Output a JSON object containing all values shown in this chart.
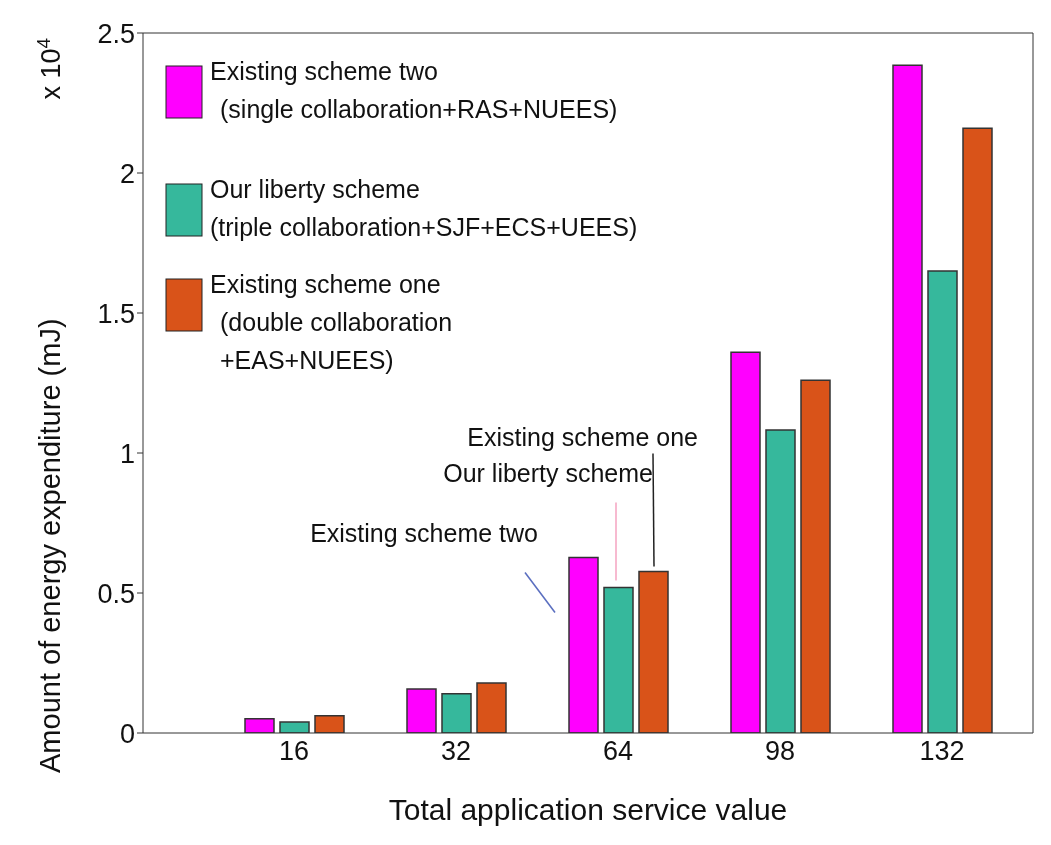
{
  "chart_data": {
    "type": "bar",
    "xlabel": "Total application service value",
    "ylabel": "Amount of energy expenditure (mJ)",
    "categories": [
      "16",
      "32",
      "64",
      "98",
      "132"
    ],
    "series": [
      {
        "name": "Existing scheme two\n(single collaboration+RAS+NUEES)",
        "color": "#ff00ff",
        "values": [
          0.051,
          0.157,
          0.627,
          1.36,
          2.385
        ]
      },
      {
        "name": "Our liberty scheme\n(triple collaboration+SJF+ECS+UEES)",
        "color": "#36b89c",
        "values": [
          0.039,
          0.14,
          0.52,
          1.082,
          1.65
        ]
      },
      {
        "name": "Existing scheme one\n(double collaboration\n+EAS+NUEES)",
        "color": "#d95319",
        "values": [
          0.062,
          0.179,
          0.577,
          1.26,
          2.16
        ]
      }
    ],
    "ylim": [
      0,
      2.5
    ],
    "yticks": [
      0,
      0.5,
      1,
      1.5,
      2,
      2.5
    ],
    "legend": "top left",
    "grid": false,
    "annotations": [
      "x 10$^{4}$",
      "Existing scheme one",
      "Our liberty scheme",
      "Existing scheme two"
    ]
  }
}
